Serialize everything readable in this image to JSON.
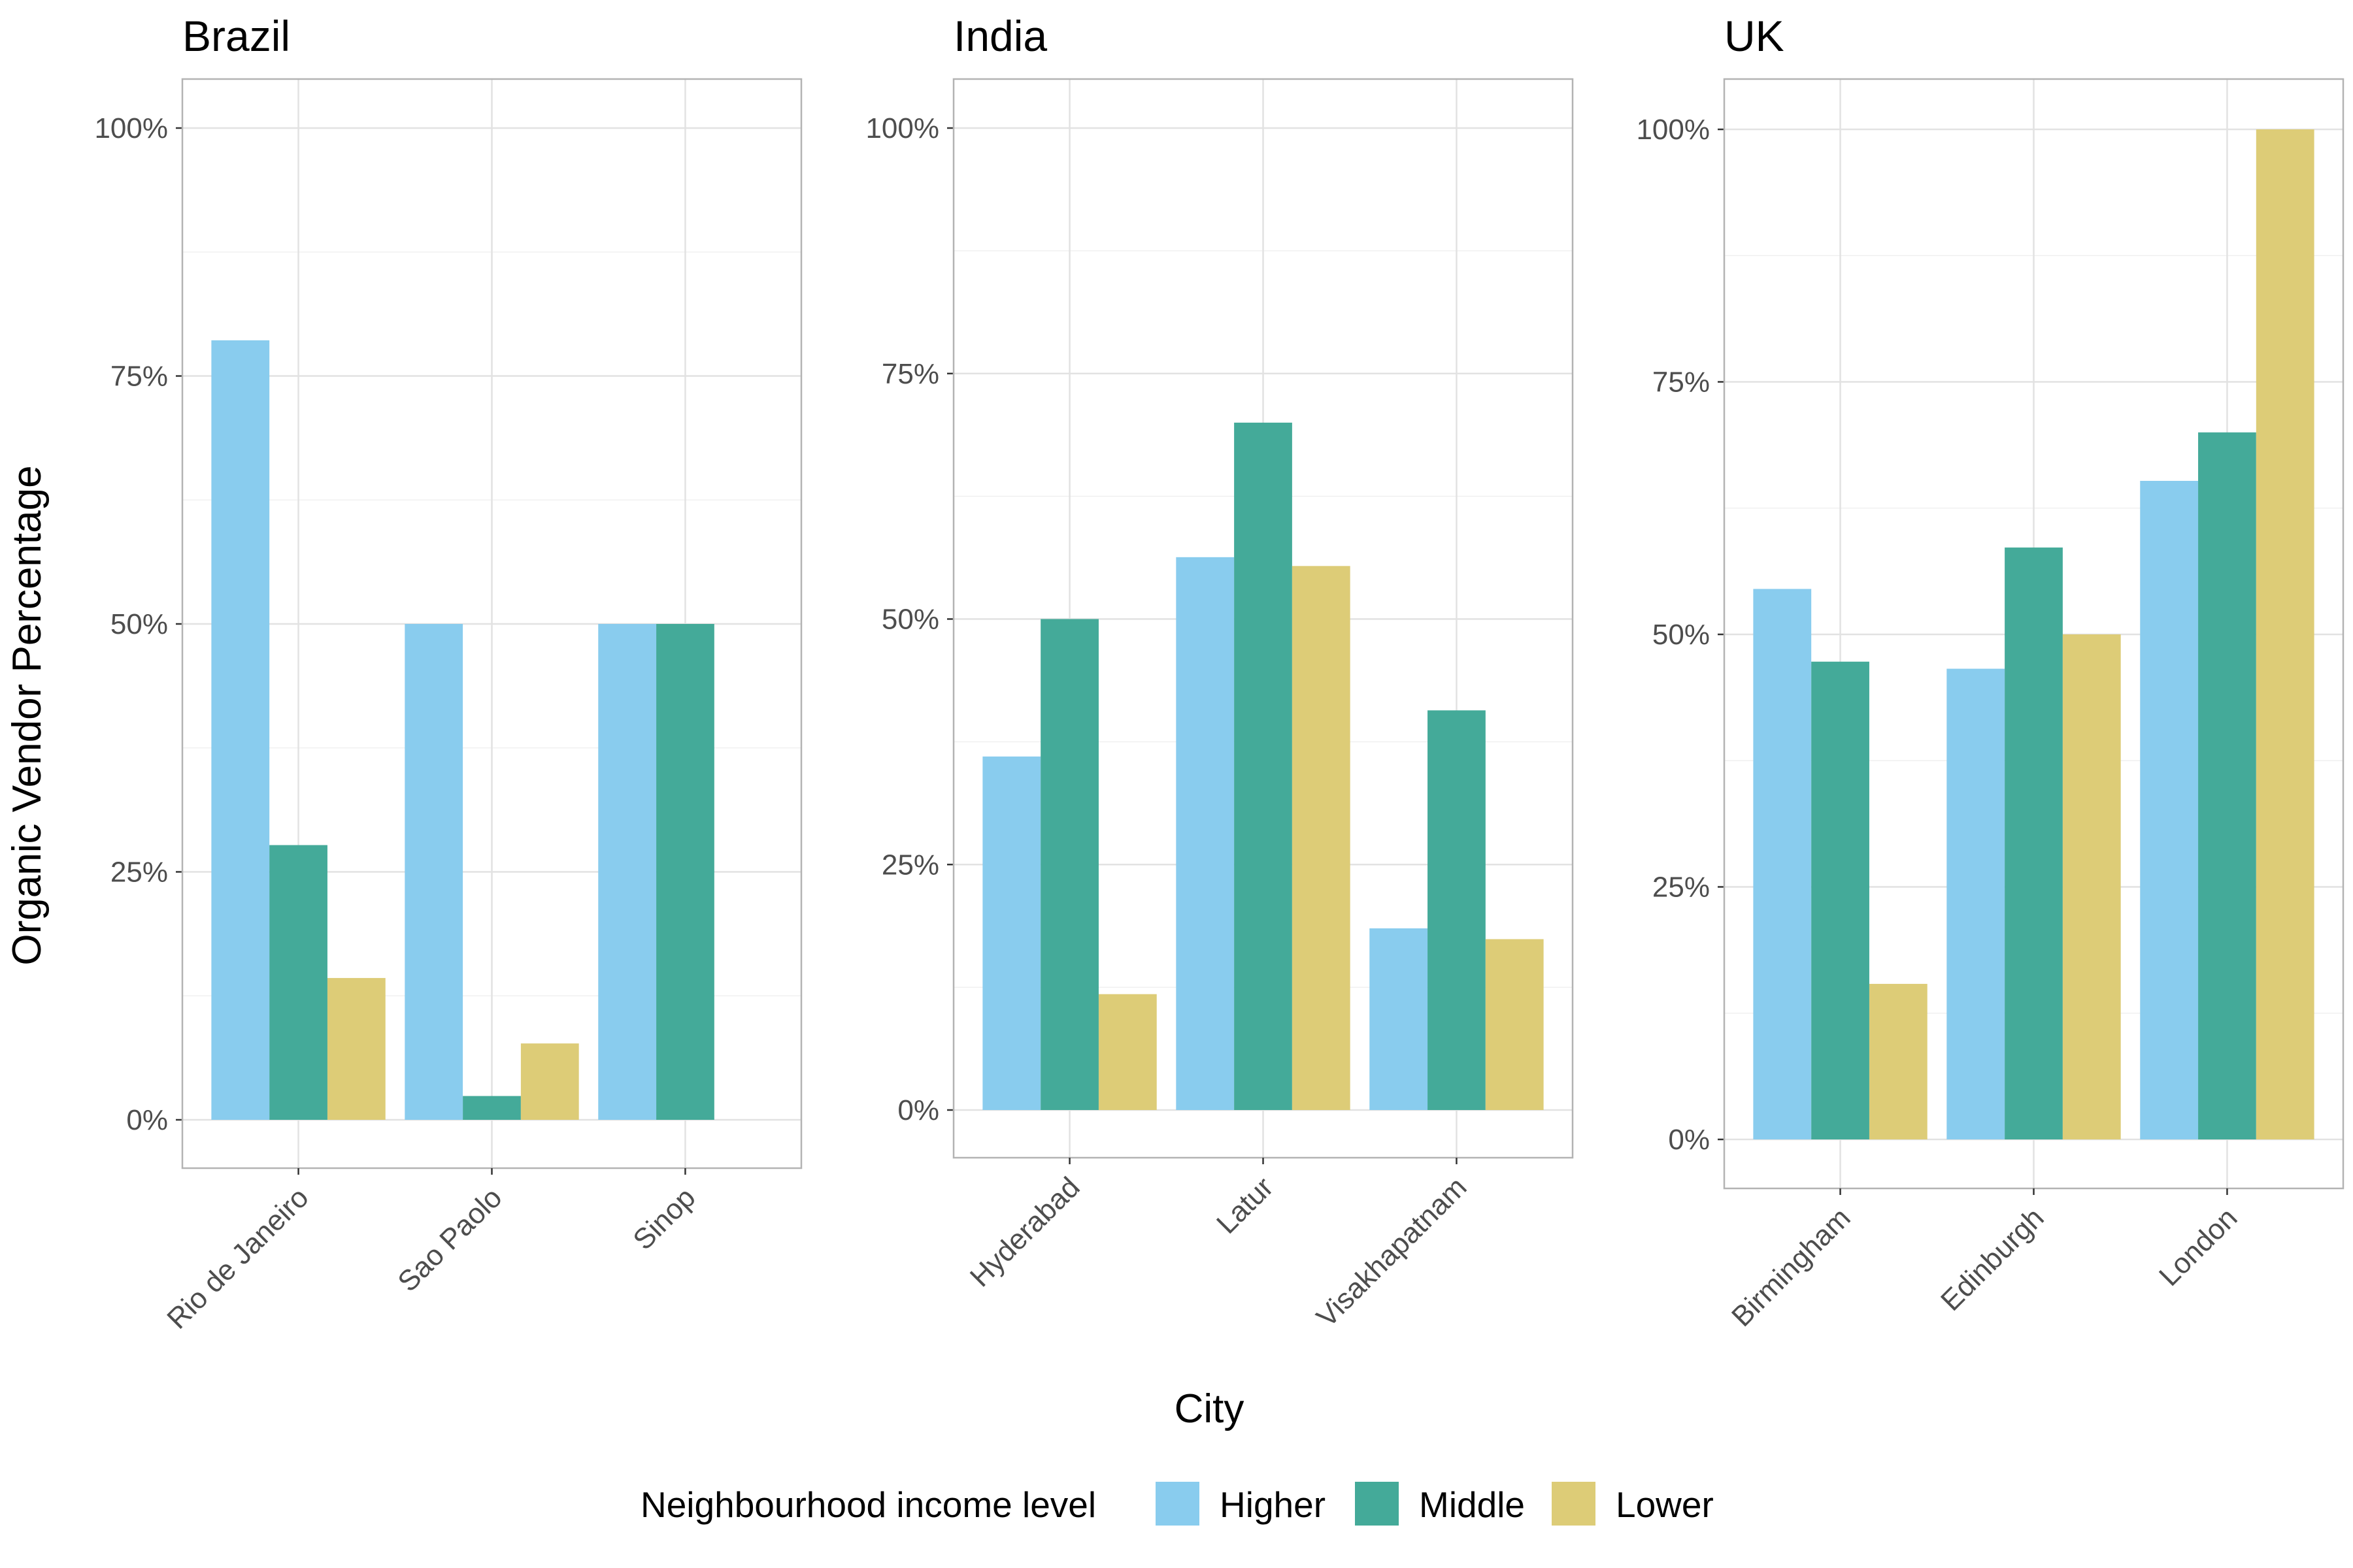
{
  "chart_data": {
    "type": "bar",
    "xlabel": "City",
    "ylabel": "Organic Vendor Percentage",
    "ylim": [
      0,
      100
    ],
    "yticks": [
      "0%",
      "25%",
      "50%",
      "75%",
      "100%"
    ],
    "grid": true,
    "legend": {
      "title": "Neighbourhood income level",
      "placement": "bottom",
      "entries": [
        {
          "name": "Higher",
          "color": "#89CCEE"
        },
        {
          "name": "Middle",
          "color": "#44AA99"
        },
        {
          "name": "Lower",
          "color": "#DDCC77"
        }
      ]
    },
    "facets": [
      {
        "title": "Brazil",
        "categories": [
          "Rio de Janeiro",
          "Sao Paolo",
          "Sinop"
        ],
        "series": [
          {
            "name": "Higher",
            "values": [
              78.6,
              50.0,
              50.0
            ]
          },
          {
            "name": "Middle",
            "values": [
              27.7,
              2.4,
              50.0
            ]
          },
          {
            "name": "Lower",
            "values": [
              14.3,
              7.7,
              null
            ]
          }
        ]
      },
      {
        "title": "India",
        "categories": [
          "Hyderabad",
          "Latur",
          "Visakhapatnam"
        ],
        "series": [
          {
            "name": "Higher",
            "values": [
              36.0,
              56.3,
              18.5
            ]
          },
          {
            "name": "Middle",
            "values": [
              50.0,
              70.0,
              40.7
            ]
          },
          {
            "name": "Lower",
            "values": [
              11.8,
              55.4,
              17.4
            ]
          }
        ]
      },
      {
        "title": "UK",
        "categories": [
          "Birmingham",
          "Edinburgh",
          "London"
        ],
        "series": [
          {
            "name": "Higher",
            "values": [
              54.5,
              46.6,
              65.2
            ]
          },
          {
            "name": "Middle",
            "values": [
              47.3,
              58.6,
              70.0
            ]
          },
          {
            "name": "Lower",
            "values": [
              15.4,
              50.0,
              100.0
            ]
          }
        ]
      }
    ]
  }
}
